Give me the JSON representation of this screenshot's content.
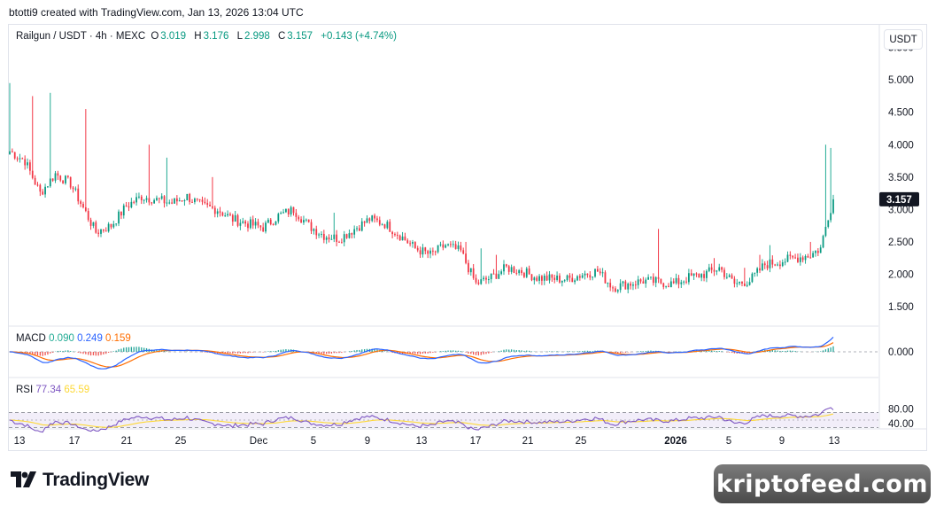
{
  "header": {
    "caption": "btotti9 created with TradingView.com, Jan 13, 2026 13:04 UTC"
  },
  "symbol": {
    "title": "Railgun / USDT · 4h · MEXC",
    "open_label": "O",
    "open": "3.019",
    "high_label": "H",
    "high": "3.176",
    "low_label": "L",
    "low": "2.998",
    "close_label": "C",
    "close": "3.157",
    "change": "+0.143 (+4.74%)"
  },
  "currency_button": "USDT",
  "colors": {
    "up": "#089981",
    "down": "#f23645",
    "wick_up": "#22ab94",
    "macd": "#2962ff",
    "signal": "#ff6d00",
    "rsi": "#7e57c2",
    "rsi_ma": "#fdd835",
    "macd_label": "#22ab94"
  },
  "macd": {
    "label": "MACD",
    "hist": "0.090",
    "macd": "0.249",
    "signal": "0.159"
  },
  "rsi": {
    "label": "RSI",
    "value": "77.34",
    "ma": "65.59",
    "upper": 70,
    "lower": 30
  },
  "brand": {
    "name": "TradingView",
    "watermark": "kriptofeed.com"
  },
  "chart_data": [
    {
      "type": "candlestick",
      "title": "Railgun / USDT · 4h · MEXC",
      "y_ticks": [
        "5.500",
        "5.000",
        "4.500",
        "4.000",
        "3.500",
        "3.000",
        "2.500",
        "2.000",
        "1.500"
      ],
      "y_range": [
        1.2,
        5.85
      ],
      "last_price": "3.157",
      "x_ticks": [
        "13",
        "17",
        "21",
        "25",
        "Dec",
        "5",
        "9",
        "13",
        "17",
        "21",
        "25",
        "2026",
        "5",
        "9",
        "13"
      ],
      "x_tick_bold": "2026",
      "anchors": [
        [
          0,
          3.9
        ],
        [
          6,
          3.75
        ],
        [
          12,
          3.25
        ],
        [
          18,
          3.55
        ],
        [
          24,
          3.4
        ],
        [
          28,
          3.1
        ],
        [
          34,
          2.65
        ],
        [
          40,
          2.75
        ],
        [
          46,
          3.05
        ],
        [
          52,
          3.2
        ],
        [
          58,
          3.15
        ],
        [
          64,
          3.1
        ],
        [
          70,
          3.2
        ],
        [
          76,
          3.05
        ],
        [
          82,
          3.0
        ],
        [
          88,
          2.85
        ],
        [
          94,
          2.78
        ],
        [
          100,
          2.72
        ],
        [
          106,
          2.9
        ],
        [
          112,
          3.0
        ],
        [
          118,
          2.75
        ],
        [
          124,
          2.6
        ],
        [
          130,
          2.55
        ],
        [
          136,
          2.7
        ],
        [
          142,
          2.85
        ],
        [
          148,
          2.78
        ],
        [
          154,
          2.6
        ],
        [
          160,
          2.4
        ],
        [
          166,
          2.3
        ],
        [
          172,
          2.45
        ],
        [
          178,
          2.35
        ],
        [
          184,
          1.85
        ],
        [
          190,
          1.95
        ],
        [
          196,
          2.1
        ],
        [
          202,
          2.05
        ],
        [
          208,
          1.95
        ],
        [
          214,
          1.93
        ],
        [
          220,
          1.92
        ],
        [
          226,
          2.0
        ],
        [
          232,
          2.05
        ],
        [
          238,
          1.8
        ],
        [
          244,
          1.85
        ],
        [
          250,
          1.9
        ],
        [
          256,
          1.88
        ],
        [
          262,
          1.85
        ],
        [
          268,
          1.95
        ],
        [
          274,
          2.0
        ],
        [
          280,
          2.1
        ],
        [
          286,
          1.85
        ],
        [
          292,
          1.9
        ],
        [
          298,
          2.15
        ],
        [
          304,
          2.2
        ],
        [
          310,
          2.25
        ],
        [
          316,
          2.3
        ],
        [
          320,
          2.4
        ],
        [
          323,
          2.9
        ],
        [
          325,
          3.15
        ]
      ],
      "spikes": [
        [
          0,
          4.95
        ],
        [
          9,
          4.75
        ],
        [
          16,
          4.8
        ],
        [
          30,
          4.55
        ],
        [
          55,
          4.0
        ],
        [
          62,
          3.8
        ],
        [
          80,
          3.5
        ],
        [
          128,
          2.95
        ],
        [
          180,
          2.5
        ],
        [
          186,
          2.4
        ],
        [
          192,
          2.3
        ],
        [
          256,
          2.7
        ],
        [
          278,
          2.25
        ],
        [
          290,
          2.1
        ],
        [
          296,
          2.3
        ],
        [
          300,
          2.45
        ],
        [
          316,
          2.5
        ],
        [
          322,
          4.0
        ],
        [
          324,
          3.95
        ]
      ]
    },
    {
      "type": "line",
      "title": "MACD",
      "y_ticks": [
        "0.000"
      ],
      "series": [
        {
          "name": "MACD",
          "last": "0.249"
        },
        {
          "name": "Signal",
          "last": "0.159"
        },
        {
          "name": "Histogram",
          "last": "0.090"
        }
      ]
    },
    {
      "type": "line",
      "title": "RSI",
      "y_ticks": [
        "80.00",
        "40.00"
      ],
      "series": [
        {
          "name": "RSI",
          "last": "77.34"
        },
        {
          "name": "RSI-based MA",
          "last": "65.59"
        }
      ]
    }
  ]
}
